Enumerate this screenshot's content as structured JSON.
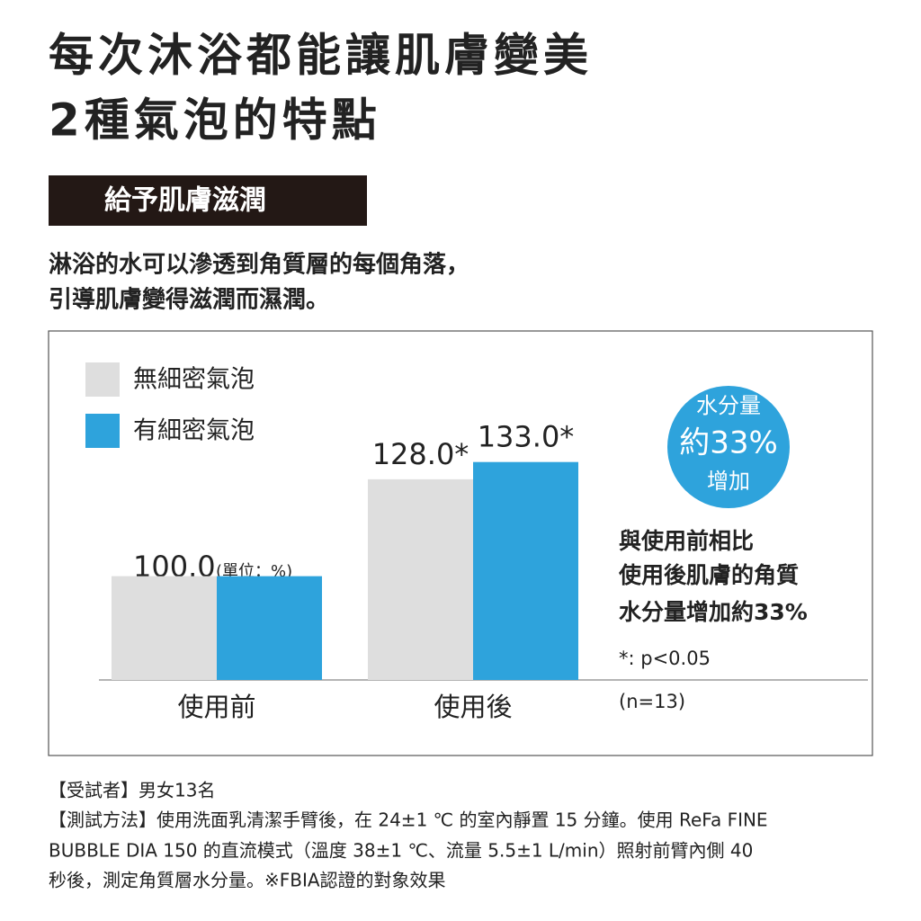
{
  "header": {
    "title_lines": [
      "每次沐浴都能讓肌膚變美",
      "2種氣泡的特點"
    ],
    "banner": "給予肌膚滋潤",
    "description_lines": [
      "淋浴的水可以滲透到角質層的每個角落，",
      "引導肌膚變得滋潤而濕潤。"
    ]
  },
  "chart_data": {
    "type": "bar",
    "categories": [
      "使用前",
      "使用後"
    ],
    "series": [
      {
        "name": "無細密氣泡",
        "color": "#dedede",
        "values": [
          100.0,
          128.0
        ],
        "value_labels": [
          "100.0",
          "128.0*"
        ]
      },
      {
        "name": "有細密氣泡",
        "color": "#2ea3dc",
        "values": [
          100.0,
          133.0
        ],
        "value_labels": [
          null,
          "133.0*"
        ]
      }
    ],
    "ylim": [
      70,
      135
    ],
    "unit_note": "(單位：%)",
    "badge_lines": [
      "水分量",
      "約33%",
      "增加"
    ],
    "note_lines": [
      "與使用前相比",
      "使用後肌膚的角質",
      "水分量增加約33%"
    ],
    "significance": "*: p<0.05",
    "sample": "(n=13)"
  },
  "footnote_lines": [
    "【受試者】男女13名",
    "【測試方法】使用洗面乳清潔手臂後，在 24±1 ℃ 的室內靜置 15 分鐘。使用 ReFa FINE",
    "BUBBLE DIA 150 的直流模式（溫度 38±1 ℃、流量 5.5±1 L/min）照射前臂內側 40",
    "秒後，測定角質層水分量。※FBIA認證的對象效果"
  ]
}
